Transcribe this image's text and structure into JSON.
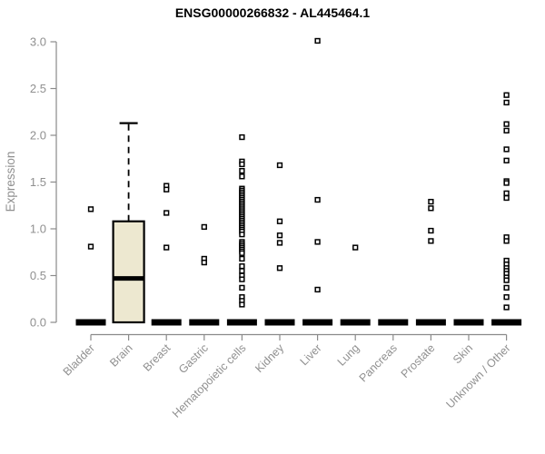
{
  "page": {
    "background": "#ffffff"
  },
  "chart_data": {
    "type": "boxplot",
    "title": "ENSG00000266832 - AL445464.1",
    "ylabel": "Expression",
    "xlabel": "",
    "ylim": [
      0.0,
      3.0
    ],
    "yticks": [
      0.0,
      0.5,
      1.0,
      1.5,
      2.0,
      2.5,
      3.0
    ],
    "grid": false,
    "legend": "none",
    "colors": {
      "box_fill": "#EDE8D0",
      "box_line": "#000000",
      "axis": "#8a8a8a",
      "tick_label": "#909090",
      "title": "#000000",
      "point_fill": "#ffffff",
      "point_stroke": "#000000"
    },
    "categories": [
      "Bladder",
      "Brain",
      "Breast",
      "Gastric",
      "Hematopoietic cells",
      "Kidney",
      "Liver",
      "Lung",
      "Pancreas",
      "Prostate",
      "Skin",
      "Unknown / Other"
    ],
    "series": [
      {
        "category": "Bladder",
        "box": {
          "low": 0,
          "q1": 0,
          "median": 0,
          "q3": 0,
          "high": 0
        },
        "points": [
          1.21,
          0.81
        ]
      },
      {
        "category": "Brain",
        "box": {
          "low": 0,
          "q1": 0,
          "median": 0.47,
          "q3": 1.08,
          "high": 2.13
        },
        "points": []
      },
      {
        "category": "Breast",
        "box": {
          "low": 0,
          "q1": 0,
          "median": 0,
          "q3": 0,
          "high": 0
        },
        "points": [
          1.46,
          1.42,
          1.17,
          0.8
        ]
      },
      {
        "category": "Gastric",
        "box": {
          "low": 0,
          "q1": 0,
          "median": 0,
          "q3": 0,
          "high": 0
        },
        "points": [
          1.02,
          0.68,
          0.64
        ]
      },
      {
        "category": "Hematopoietic cells",
        "box": {
          "low": 0,
          "q1": 0,
          "median": 0,
          "q3": 0,
          "high": 0
        },
        "points": [
          1.98,
          1.72,
          1.69,
          1.62,
          1.56,
          1.43,
          1.41,
          1.39,
          1.37,
          1.35,
          1.33,
          1.31,
          1.29,
          1.27,
          1.25,
          1.23,
          1.21,
          1.19,
          1.17,
          1.15,
          1.13,
          1.11,
          1.09,
          1.07,
          1.05,
          1.03,
          1.01,
          0.99,
          0.97,
          0.94,
          0.86,
          0.84,
          0.82,
          0.8,
          0.78,
          0.76,
          0.74,
          0.68,
          0.6,
          0.55,
          0.5,
          0.46,
          0.37,
          0.27,
          0.23,
          0.19
        ]
      },
      {
        "category": "Kidney",
        "box": {
          "low": 0,
          "q1": 0,
          "median": 0,
          "q3": 0,
          "high": 0
        },
        "points": [
          1.68,
          1.08,
          0.93,
          0.85,
          0.58
        ]
      },
      {
        "category": "Liver",
        "box": {
          "low": 0,
          "q1": 0,
          "median": 0,
          "q3": 0,
          "high": 0
        },
        "points": [
          3.01,
          1.31,
          0.86,
          0.35
        ]
      },
      {
        "category": "Lung",
        "box": {
          "low": 0,
          "q1": 0,
          "median": 0,
          "q3": 0,
          "high": 0
        },
        "points": [
          0.8
        ]
      },
      {
        "category": "Pancreas",
        "box": {
          "low": 0,
          "q1": 0,
          "median": 0,
          "q3": 0,
          "high": 0
        },
        "points": []
      },
      {
        "category": "Prostate",
        "box": {
          "low": 0,
          "q1": 0,
          "median": 0,
          "q3": 0,
          "high": 0
        },
        "points": [
          1.29,
          1.22,
          0.98,
          0.87
        ]
      },
      {
        "category": "Skin",
        "box": {
          "low": 0,
          "q1": 0,
          "median": 0,
          "q3": 0,
          "high": 0
        },
        "points": []
      },
      {
        "category": "Unknown / Other",
        "box": {
          "low": 0,
          "q1": 0,
          "median": 0,
          "q3": 0,
          "high": 0
        },
        "points": [
          2.43,
          2.35,
          2.12,
          2.05,
          1.85,
          1.73,
          1.51,
          1.49,
          1.38,
          1.33,
          0.91,
          0.87,
          0.66,
          0.62,
          0.58,
          0.55,
          0.52,
          0.48,
          0.45,
          0.37,
          0.27,
          0.16
        ]
      }
    ]
  }
}
